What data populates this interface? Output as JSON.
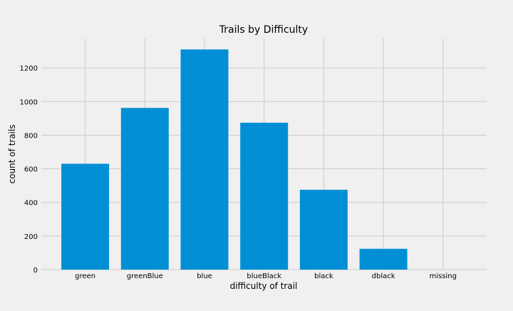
{
  "chart_data": {
    "type": "bar",
    "title": "Trails by Difficulty",
    "xlabel": "difficulty of trail",
    "ylabel": "count of trails",
    "categories": [
      "green",
      "greenBlue",
      "blue",
      "blueBlack",
      "black",
      "dblack",
      "missing"
    ],
    "values": [
      630,
      962,
      1310,
      874,
      475,
      124,
      0
    ],
    "ylim": [
      0,
      1375
    ],
    "yticks": [
      0,
      200,
      400,
      600,
      800,
      1000,
      1200
    ],
    "grid": true,
    "bar_color": "#008fd5"
  },
  "colors": {
    "background": "#f0f0f0",
    "grid": "#cbcbcb",
    "text": "#000000"
  }
}
